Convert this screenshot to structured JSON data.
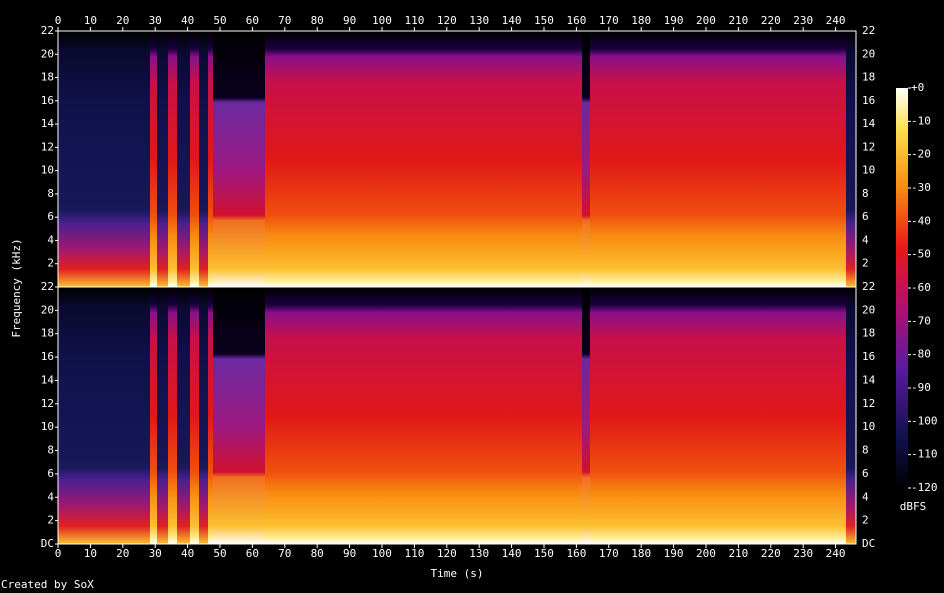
{
  "chart_data": {
    "type": "spectrogram",
    "xlabel": "Time (s)",
    "ylabel": "Frequency (kHz)",
    "footer": "Created by SoX",
    "xlim": [
      0,
      246.3
    ],
    "xticks": [
      0,
      10,
      20,
      30,
      40,
      50,
      60,
      70,
      80,
      90,
      100,
      110,
      120,
      130,
      140,
      150,
      160,
      170,
      180,
      190,
      200,
      210,
      220,
      230,
      240
    ],
    "panels": [
      {
        "ylim": [
          0,
          22
        ],
        "yticks": [
          2,
          4,
          6,
          8,
          10,
          12,
          14,
          16,
          18,
          20,
          22
        ]
      },
      {
        "ylim": [
          0,
          22
        ],
        "yticks": [
          {
            "value": 0,
            "label": "DC"
          },
          2,
          4,
          6,
          8,
          10,
          12,
          14,
          16,
          18,
          20,
          22
        ]
      }
    ],
    "colorbar": {
      "label": "dBFS",
      "lim": [
        -120,
        0
      ],
      "ticks": [
        {
          "value": 0,
          "label": "+0"
        },
        -10,
        -20,
        -30,
        -40,
        -50,
        -60,
        -70,
        -80,
        -90,
        -100,
        -110,
        -120
      ]
    }
  }
}
